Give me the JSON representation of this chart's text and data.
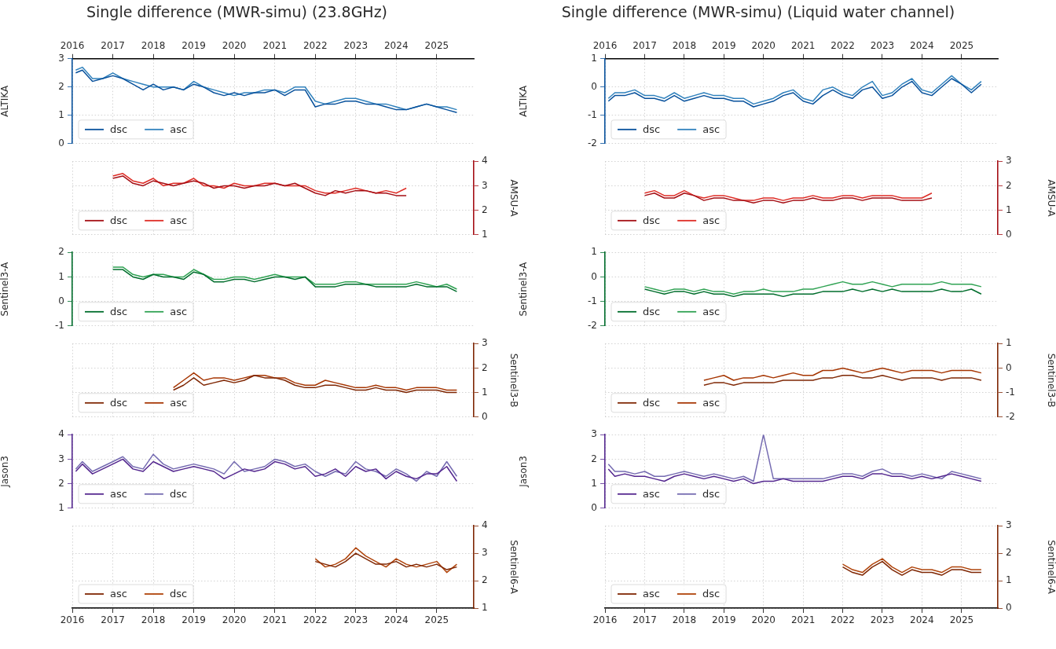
{
  "chart_data": [
    {
      "type": "line",
      "title": "Single difference (MWR-simu) (23.8GHz)",
      "x": [
        "2016-02",
        "2016-04",
        "2016-07",
        "2016-10",
        "2017-01",
        "2017-04",
        "2017-07",
        "2017-10",
        "2018-01",
        "2018-04",
        "2018-07",
        "2018-10",
        "2019-01",
        "2019-04",
        "2019-07",
        "2019-10",
        "2020-01",
        "2020-04",
        "2020-07",
        "2020-10",
        "2021-01",
        "2021-04",
        "2021-07",
        "2021-10",
        "2022-01",
        "2022-04",
        "2022-07",
        "2022-10",
        "2023-01",
        "2023-04",
        "2023-07",
        "2023-10",
        "2024-01",
        "2024-04",
        "2024-07",
        "2024-10",
        "2025-01",
        "2025-04",
        "2025-07"
      ],
      "xlim": [
        "2016-01",
        "2025-12"
      ],
      "xticks": [
        "2016",
        "2017",
        "2018",
        "2019",
        "2020",
        "2021",
        "2022",
        "2023",
        "2024",
        "2025"
      ],
      "ylabel": "ALTIKA",
      "ylim": [
        0,
        3
      ],
      "yticks": [
        0,
        1,
        2,
        3
      ],
      "grid": true,
      "legend": "bottom left",
      "series": [
        {
          "name": "dsc",
          "color": "#08519c",
          "values": [
            2.5,
            2.6,
            2.2,
            2.3,
            2.4,
            2.3,
            2.1,
            1.9,
            2.1,
            1.9,
            2.0,
            1.9,
            2.1,
            2.0,
            1.8,
            1.7,
            1.8,
            1.7,
            1.8,
            1.8,
            1.9,
            1.7,
            1.9,
            1.9,
            1.3,
            1.4,
            1.4,
            1.5,
            1.5,
            1.4,
            1.4,
            1.3,
            1.2,
            1.2,
            1.3,
            1.4,
            1.3,
            1.2,
            1.1
          ]
        },
        {
          "name": "asc",
          "color": "#3182bd",
          "values": [
            2.6,
            2.7,
            2.3,
            2.3,
            2.5,
            2.3,
            2.2,
            2.1,
            2.0,
            2.0,
            2.0,
            1.9,
            2.2,
            2.0,
            1.9,
            1.8,
            1.7,
            1.8,
            1.8,
            1.9,
            1.9,
            1.8,
            2.0,
            2.0,
            1.5,
            1.4,
            1.5,
            1.6,
            1.6,
            1.5,
            1.4,
            1.4,
            1.3,
            1.2,
            1.3,
            1.4,
            1.3,
            1.3,
            1.2
          ]
        }
      ]
    },
    {
      "type": "line",
      "x": [
        "2017-01",
        "2017-04",
        "2017-07",
        "2017-10",
        "2018-01",
        "2018-04",
        "2018-07",
        "2018-10",
        "2019-01",
        "2019-04",
        "2019-07",
        "2019-10",
        "2020-01",
        "2020-04",
        "2020-07",
        "2020-10",
        "2021-01",
        "2021-04",
        "2021-07",
        "2021-10",
        "2022-01",
        "2022-04",
        "2022-07",
        "2022-10",
        "2023-01",
        "2023-04",
        "2023-07",
        "2023-10",
        "2024-01",
        "2024-04"
      ],
      "xlim": [
        "2016-01",
        "2025-12"
      ],
      "xticks": [
        "2016",
        "2017",
        "2018",
        "2019",
        "2020",
        "2021",
        "2022",
        "2023",
        "2024",
        "2025"
      ],
      "tick_labels": "y",
      "y2label": "AMSU-A",
      "y2lim": [
        1,
        4
      ],
      "y2ticks": [
        1,
        2,
        3,
        4
      ],
      "grid": true,
      "legend": "bottom left",
      "series": [
        {
          "name": "dsc",
          "color": "#a50f15",
          "axis": "y2",
          "values": [
            3.3,
            3.4,
            3.1,
            3.0,
            3.2,
            3.1,
            3.0,
            3.1,
            3.2,
            3.1,
            2.9,
            3.0,
            3.0,
            2.9,
            3.0,
            3.0,
            3.1,
            3.0,
            3.1,
            2.9,
            2.7,
            2.6,
            2.8,
            2.7,
            2.8,
            2.8,
            2.7,
            2.7,
            2.6,
            2.6
          ]
        },
        {
          "name": "asc",
          "color": "#de2d26",
          "axis": "y2",
          "values": [
            3.4,
            3.5,
            3.2,
            3.1,
            3.3,
            3.0,
            3.1,
            3.1,
            3.3,
            3.0,
            3.0,
            2.9,
            3.1,
            3.0,
            3.0,
            3.1,
            3.1,
            3.0,
            3.0,
            3.0,
            2.8,
            2.7,
            2.7,
            2.8,
            2.9,
            2.8,
            2.7,
            2.8,
            2.7,
            2.9
          ]
        }
      ]
    },
    {
      "type": "line",
      "x": [
        "2017-01",
        "2017-04",
        "2017-07",
        "2017-10",
        "2018-01",
        "2018-04",
        "2018-07",
        "2018-10",
        "2019-01",
        "2019-04",
        "2019-07",
        "2019-10",
        "2020-01",
        "2020-04",
        "2020-07",
        "2020-10",
        "2021-01",
        "2021-04",
        "2021-07",
        "2021-10",
        "2022-01",
        "2022-04",
        "2022-07",
        "2022-10",
        "2023-01",
        "2023-04",
        "2023-07",
        "2023-10",
        "2024-01",
        "2024-04",
        "2024-07",
        "2024-10",
        "2025-01",
        "2025-04",
        "2025-07"
      ],
      "xlim": [
        "2016-01",
        "2025-12"
      ],
      "xticks": [
        "2016",
        "2017",
        "2018",
        "2019",
        "2020",
        "2021",
        "2022",
        "2023",
        "2024",
        "2025"
      ],
      "tick_labels": "y",
      "ylabel": "Sentinel3-A",
      "ylim": [
        -1,
        2
      ],
      "yticks": [
        -1,
        0,
        1,
        2
      ],
      "grid": true,
      "legend": "bottom left",
      "series": [
        {
          "name": "dsc",
          "color": "#006d2c",
          "values": [
            1.3,
            1.3,
            1.0,
            0.9,
            1.1,
            1.0,
            1.0,
            0.9,
            1.2,
            1.1,
            0.8,
            0.8,
            0.9,
            0.9,
            0.8,
            0.9,
            1.0,
            1.0,
            0.9,
            1.0,
            0.6,
            0.6,
            0.6,
            0.7,
            0.7,
            0.7,
            0.6,
            0.6,
            0.6,
            0.6,
            0.7,
            0.6,
            0.6,
            0.6,
            0.4
          ]
        },
        {
          "name": "asc",
          "color": "#31a354",
          "values": [
            1.4,
            1.4,
            1.1,
            1.0,
            1.1,
            1.1,
            1.0,
            1.0,
            1.3,
            1.1,
            0.9,
            0.9,
            1.0,
            1.0,
            0.9,
            1.0,
            1.1,
            1.0,
            1.0,
            1.0,
            0.7,
            0.7,
            0.7,
            0.8,
            0.8,
            0.7,
            0.7,
            0.7,
            0.7,
            0.7,
            0.8,
            0.7,
            0.6,
            0.7,
            0.5
          ]
        }
      ]
    },
    {
      "type": "line",
      "x": [
        "2018-07",
        "2018-10",
        "2019-01",
        "2019-04",
        "2019-07",
        "2019-10",
        "2020-01",
        "2020-04",
        "2020-07",
        "2020-10",
        "2021-01",
        "2021-04",
        "2021-07",
        "2021-10",
        "2022-01",
        "2022-04",
        "2022-07",
        "2022-10",
        "2023-01",
        "2023-04",
        "2023-07",
        "2023-10",
        "2024-01",
        "2024-04",
        "2024-07",
        "2024-10",
        "2025-01",
        "2025-04",
        "2025-07"
      ],
      "xlim": [
        "2016-01",
        "2025-12"
      ],
      "xticks": [
        "2016",
        "2017",
        "2018",
        "2019",
        "2020",
        "2021",
        "2022",
        "2023",
        "2024",
        "2025"
      ],
      "tick_labels": "y",
      "y2label": "Sentinel3-B",
      "y2lim": [
        0,
        3
      ],
      "y2ticks": [
        0,
        1,
        2,
        3
      ],
      "grid": true,
      "legend": "bottom left",
      "series": [
        {
          "name": "dsc",
          "color": "#7f2704",
          "axis": "y2",
          "values": [
            1.1,
            1.3,
            1.6,
            1.3,
            1.4,
            1.5,
            1.4,
            1.5,
            1.7,
            1.6,
            1.6,
            1.5,
            1.3,
            1.2,
            1.2,
            1.3,
            1.3,
            1.2,
            1.1,
            1.1,
            1.2,
            1.1,
            1.1,
            1.0,
            1.1,
            1.1,
            1.1,
            1.0,
            1.0
          ]
        },
        {
          "name": "asc",
          "color": "#a63603",
          "axis": "y2",
          "values": [
            1.2,
            1.5,
            1.8,
            1.5,
            1.6,
            1.6,
            1.5,
            1.6,
            1.7,
            1.7,
            1.6,
            1.6,
            1.4,
            1.3,
            1.3,
            1.5,
            1.4,
            1.3,
            1.2,
            1.2,
            1.3,
            1.2,
            1.2,
            1.1,
            1.2,
            1.2,
            1.2,
            1.1,
            1.1
          ]
        }
      ]
    },
    {
      "type": "line",
      "x": [
        "2016-02",
        "2016-04",
        "2016-07",
        "2016-10",
        "2017-01",
        "2017-04",
        "2017-07",
        "2017-10",
        "2018-01",
        "2018-04",
        "2018-07",
        "2018-10",
        "2019-01",
        "2019-04",
        "2019-07",
        "2019-10",
        "2020-01",
        "2020-04",
        "2020-07",
        "2020-10",
        "2021-01",
        "2021-04",
        "2021-07",
        "2021-10",
        "2022-01",
        "2022-04",
        "2022-07",
        "2022-10",
        "2023-01",
        "2023-04",
        "2023-07",
        "2023-10",
        "2024-01",
        "2024-04",
        "2024-07",
        "2024-10",
        "2025-01",
        "2025-04",
        "2025-07"
      ],
      "xlim": [
        "2016-01",
        "2025-12"
      ],
      "xticks": [
        "2016",
        "2017",
        "2018",
        "2019",
        "2020",
        "2021",
        "2022",
        "2023",
        "2024",
        "2025"
      ],
      "tick_labels": "y",
      "ylabel": "Jason3",
      "ylim": [
        1,
        4
      ],
      "yticks": [
        1,
        2,
        3,
        4
      ],
      "grid": true,
      "legend": "bottom left",
      "series": [
        {
          "name": "asc",
          "color": "#54278f",
          "values": [
            2.5,
            2.8,
            2.4,
            2.6,
            2.8,
            3.0,
            2.6,
            2.5,
            2.9,
            2.7,
            2.5,
            2.6,
            2.7,
            2.6,
            2.5,
            2.2,
            2.4,
            2.6,
            2.5,
            2.6,
            2.9,
            2.8,
            2.6,
            2.7,
            2.3,
            2.4,
            2.6,
            2.3,
            2.7,
            2.5,
            2.6,
            2.2,
            2.5,
            2.3,
            2.2,
            2.4,
            2.4,
            2.7,
            2.1
          ]
        },
        {
          "name": "dsc",
          "color": "#756bb1",
          "values": [
            2.6,
            2.9,
            2.5,
            2.7,
            2.9,
            3.1,
            2.7,
            2.6,
            3.2,
            2.8,
            2.6,
            2.7,
            2.8,
            2.7,
            2.6,
            2.4,
            2.9,
            2.5,
            2.6,
            2.7,
            3.0,
            2.9,
            2.7,
            2.8,
            2.5,
            2.3,
            2.5,
            2.4,
            2.9,
            2.6,
            2.5,
            2.3,
            2.6,
            2.4,
            2.1,
            2.5,
            2.3,
            2.9,
            2.3
          ]
        }
      ]
    },
    {
      "type": "line",
      "x": [
        "2022-01",
        "2022-04",
        "2022-07",
        "2022-10",
        "2023-01",
        "2023-04",
        "2023-07",
        "2023-10",
        "2024-01",
        "2024-04",
        "2024-07",
        "2024-10",
        "2025-01",
        "2025-04",
        "2025-07"
      ],
      "xlim": [
        "2016-01",
        "2025-12"
      ],
      "xticks": [
        "2016",
        "2017",
        "2018",
        "2019",
        "2020",
        "2021",
        "2022",
        "2023",
        "2024",
        "2025"
      ],
      "y2label": "Sentinel6-A",
      "y2lim": [
        1,
        4
      ],
      "y2ticks": [
        1,
        2,
        3,
        4
      ],
      "grid": true,
      "legend": "bottom left",
      "series": [
        {
          "name": "asc",
          "color": "#7f2704",
          "axis": "y2",
          "values": [
            2.7,
            2.6,
            2.5,
            2.7,
            3.0,
            2.8,
            2.6,
            2.6,
            2.7,
            2.5,
            2.6,
            2.5,
            2.6,
            2.4,
            2.5
          ]
        },
        {
          "name": "dsc",
          "color": "#b0450c",
          "axis": "y2",
          "values": [
            2.8,
            2.5,
            2.6,
            2.8,
            3.2,
            2.9,
            2.7,
            2.5,
            2.8,
            2.6,
            2.5,
            2.6,
            2.7,
            2.3,
            2.6
          ]
        }
      ]
    },
    {
      "type": "line",
      "title": "Single difference (MWR-simu) (Liquid water channel)",
      "x": [
        "2016-02",
        "2016-04",
        "2016-07",
        "2016-10",
        "2017-01",
        "2017-04",
        "2017-07",
        "2017-10",
        "2018-01",
        "2018-04",
        "2018-07",
        "2018-10",
        "2019-01",
        "2019-04",
        "2019-07",
        "2019-10",
        "2020-01",
        "2020-04",
        "2020-07",
        "2020-10",
        "2021-01",
        "2021-04",
        "2021-07",
        "2021-10",
        "2022-01",
        "2022-04",
        "2022-07",
        "2022-10",
        "2023-01",
        "2023-04",
        "2023-07",
        "2023-10",
        "2024-01",
        "2024-04",
        "2024-07",
        "2024-10",
        "2025-01",
        "2025-04",
        "2025-07"
      ],
      "xlim": [
        "2016-01",
        "2025-12"
      ],
      "xticks": [
        "2016",
        "2017",
        "2018",
        "2019",
        "2020",
        "2021",
        "2022",
        "2023",
        "2024",
        "2025"
      ],
      "ylabel": "ALTIKA",
      "ylim": [
        -2,
        1
      ],
      "yticks": [
        -2,
        -1,
        0,
        1
      ],
      "grid": true,
      "legend": "bottom left",
      "series": [
        {
          "name": "dsc",
          "color": "#08519c",
          "values": [
            -0.5,
            -0.3,
            -0.3,
            -0.2,
            -0.4,
            -0.4,
            -0.5,
            -0.3,
            -0.5,
            -0.4,
            -0.3,
            -0.4,
            -0.4,
            -0.5,
            -0.5,
            -0.7,
            -0.6,
            -0.5,
            -0.3,
            -0.2,
            -0.5,
            -0.6,
            -0.3,
            -0.1,
            -0.3,
            -0.4,
            -0.1,
            0.0,
            -0.4,
            -0.3,
            0.0,
            0.2,
            -0.2,
            -0.3,
            0.0,
            0.3,
            0.1,
            -0.2,
            0.1
          ]
        },
        {
          "name": "asc",
          "color": "#3182bd",
          "values": [
            -0.4,
            -0.2,
            -0.2,
            -0.1,
            -0.3,
            -0.3,
            -0.4,
            -0.2,
            -0.4,
            -0.3,
            -0.2,
            -0.3,
            -0.3,
            -0.4,
            -0.4,
            -0.6,
            -0.5,
            -0.4,
            -0.2,
            -0.1,
            -0.4,
            -0.5,
            -0.1,
            0.0,
            -0.2,
            -0.3,
            0.0,
            0.2,
            -0.3,
            -0.2,
            0.1,
            0.3,
            -0.1,
            -0.2,
            0.1,
            0.4,
            0.1,
            -0.1,
            0.2
          ]
        }
      ]
    },
    {
      "type": "line",
      "x": [
        "2017-01",
        "2017-04",
        "2017-07",
        "2017-10",
        "2018-01",
        "2018-04",
        "2018-07",
        "2018-10",
        "2019-01",
        "2019-04",
        "2019-07",
        "2019-10",
        "2020-01",
        "2020-04",
        "2020-07",
        "2020-10",
        "2021-01",
        "2021-04",
        "2021-07",
        "2021-10",
        "2022-01",
        "2022-04",
        "2022-07",
        "2022-10",
        "2023-01",
        "2023-04",
        "2023-07",
        "2023-10",
        "2024-01",
        "2024-04"
      ],
      "xlim": [
        "2016-01",
        "2025-12"
      ],
      "xticks": [
        "2016",
        "2017",
        "2018",
        "2019",
        "2020",
        "2021",
        "2022",
        "2023",
        "2024",
        "2025"
      ],
      "tick_labels": "y",
      "y2label": "AMSU-A",
      "y2lim": [
        0,
        3
      ],
      "y2ticks": [
        0,
        1,
        2,
        3
      ],
      "grid": true,
      "legend": "bottom left",
      "series": [
        {
          "name": "dsc",
          "color": "#a50f15",
          "axis": "y2",
          "values": [
            1.6,
            1.7,
            1.5,
            1.5,
            1.7,
            1.6,
            1.4,
            1.5,
            1.5,
            1.4,
            1.4,
            1.3,
            1.4,
            1.4,
            1.3,
            1.4,
            1.4,
            1.5,
            1.4,
            1.4,
            1.5,
            1.5,
            1.4,
            1.5,
            1.5,
            1.5,
            1.4,
            1.4,
            1.4,
            1.5
          ]
        },
        {
          "name": "asc",
          "color": "#de2d26",
          "axis": "y2",
          "values": [
            1.7,
            1.8,
            1.6,
            1.6,
            1.8,
            1.6,
            1.5,
            1.6,
            1.6,
            1.5,
            1.4,
            1.4,
            1.5,
            1.5,
            1.4,
            1.5,
            1.5,
            1.6,
            1.5,
            1.5,
            1.6,
            1.6,
            1.5,
            1.6,
            1.6,
            1.6,
            1.5,
            1.5,
            1.5,
            1.7
          ]
        }
      ]
    },
    {
      "type": "line",
      "x": [
        "2017-01",
        "2017-04",
        "2017-07",
        "2017-10",
        "2018-01",
        "2018-04",
        "2018-07",
        "2018-10",
        "2019-01",
        "2019-04",
        "2019-07",
        "2019-10",
        "2020-01",
        "2020-04",
        "2020-07",
        "2020-10",
        "2021-01",
        "2021-04",
        "2021-07",
        "2021-10",
        "2022-01",
        "2022-04",
        "2022-07",
        "2022-10",
        "2023-01",
        "2023-04",
        "2023-07",
        "2023-10",
        "2024-01",
        "2024-04",
        "2024-07",
        "2024-10",
        "2025-01",
        "2025-04",
        "2025-07"
      ],
      "xlim": [
        "2016-01",
        "2025-12"
      ],
      "xticks": [
        "2016",
        "2017",
        "2018",
        "2019",
        "2020",
        "2021",
        "2022",
        "2023",
        "2024",
        "2025"
      ],
      "tick_labels": "y",
      "ylabel": "Sentinel3-A",
      "ylim": [
        -2,
        1
      ],
      "yticks": [
        -2,
        -1,
        0,
        1
      ],
      "grid": true,
      "legend": "bottom left",
      "series": [
        {
          "name": "dsc",
          "color": "#006d2c",
          "values": [
            -0.5,
            -0.6,
            -0.7,
            -0.6,
            -0.6,
            -0.7,
            -0.6,
            -0.7,
            -0.7,
            -0.8,
            -0.7,
            -0.7,
            -0.7,
            -0.7,
            -0.8,
            -0.7,
            -0.7,
            -0.7,
            -0.6,
            -0.6,
            -0.6,
            -0.5,
            -0.6,
            -0.5,
            -0.6,
            -0.5,
            -0.6,
            -0.6,
            -0.6,
            -0.6,
            -0.5,
            -0.6,
            -0.6,
            -0.5,
            -0.7
          ]
        },
        {
          "name": "asc",
          "color": "#31a354",
          "values": [
            -0.4,
            -0.5,
            -0.6,
            -0.5,
            -0.5,
            -0.6,
            -0.5,
            -0.6,
            -0.6,
            -0.7,
            -0.6,
            -0.6,
            -0.5,
            -0.6,
            -0.6,
            -0.6,
            -0.5,
            -0.5,
            -0.4,
            -0.3,
            -0.2,
            -0.3,
            -0.3,
            -0.2,
            -0.3,
            -0.4,
            -0.3,
            -0.3,
            -0.3,
            -0.3,
            -0.2,
            -0.3,
            -0.3,
            -0.3,
            -0.4
          ]
        }
      ]
    },
    {
      "type": "line",
      "x": [
        "2018-07",
        "2018-10",
        "2019-01",
        "2019-04",
        "2019-07",
        "2019-10",
        "2020-01",
        "2020-04",
        "2020-07",
        "2020-10",
        "2021-01",
        "2021-04",
        "2021-07",
        "2021-10",
        "2022-01",
        "2022-04",
        "2022-07",
        "2022-10",
        "2023-01",
        "2023-04",
        "2023-07",
        "2023-10",
        "2024-01",
        "2024-04",
        "2024-07",
        "2024-10",
        "2025-01",
        "2025-04",
        "2025-07"
      ],
      "xlim": [
        "2016-01",
        "2025-12"
      ],
      "xticks": [
        "2016",
        "2017",
        "2018",
        "2019",
        "2020",
        "2021",
        "2022",
        "2023",
        "2024",
        "2025"
      ],
      "tick_labels": "y",
      "y2label": "Sentinel3-B",
      "y2lim": [
        -2,
        1
      ],
      "y2ticks": [
        -2,
        -1,
        0,
        1
      ],
      "grid": true,
      "legend": "bottom left",
      "series": [
        {
          "name": "dsc",
          "color": "#7f2704",
          "axis": "y2",
          "values": [
            -0.7,
            -0.6,
            -0.6,
            -0.7,
            -0.6,
            -0.6,
            -0.6,
            -0.6,
            -0.5,
            -0.5,
            -0.5,
            -0.5,
            -0.4,
            -0.4,
            -0.3,
            -0.3,
            -0.4,
            -0.4,
            -0.3,
            -0.4,
            -0.5,
            -0.4,
            -0.4,
            -0.4,
            -0.5,
            -0.4,
            -0.4,
            -0.4,
            -0.5
          ]
        },
        {
          "name": "asc",
          "color": "#a63603",
          "axis": "y2",
          "values": [
            -0.5,
            -0.4,
            -0.3,
            -0.5,
            -0.4,
            -0.4,
            -0.3,
            -0.4,
            -0.3,
            -0.2,
            -0.3,
            -0.3,
            -0.1,
            -0.1,
            0.0,
            -0.1,
            -0.2,
            -0.1,
            0.0,
            -0.1,
            -0.2,
            -0.1,
            -0.1,
            -0.1,
            -0.2,
            -0.1,
            -0.1,
            -0.1,
            -0.2
          ]
        }
      ]
    },
    {
      "type": "line",
      "x": [
        "2016-02",
        "2016-04",
        "2016-07",
        "2016-10",
        "2017-01",
        "2017-04",
        "2017-07",
        "2017-10",
        "2018-01",
        "2018-04",
        "2018-07",
        "2018-10",
        "2019-01",
        "2019-04",
        "2019-07",
        "2019-10",
        "2020-01",
        "2020-04",
        "2020-07",
        "2020-10",
        "2021-01",
        "2021-04",
        "2021-07",
        "2021-10",
        "2022-01",
        "2022-04",
        "2022-07",
        "2022-10",
        "2023-01",
        "2023-04",
        "2023-07",
        "2023-10",
        "2024-01",
        "2024-04",
        "2024-07",
        "2024-10",
        "2025-01",
        "2025-04",
        "2025-07"
      ],
      "xlim": [
        "2016-01",
        "2025-12"
      ],
      "xticks": [
        "2016",
        "2017",
        "2018",
        "2019",
        "2020",
        "2021",
        "2022",
        "2023",
        "2024",
        "2025"
      ],
      "tick_labels": "y",
      "ylabel": "Jason3",
      "ylim": [
        0,
        3
      ],
      "yticks": [
        0,
        1,
        2,
        3
      ],
      "grid": true,
      "legend": "bottom left",
      "series": [
        {
          "name": "asc",
          "color": "#54278f",
          "values": [
            1.6,
            1.3,
            1.4,
            1.3,
            1.3,
            1.2,
            1.1,
            1.3,
            1.4,
            1.3,
            1.2,
            1.3,
            1.2,
            1.1,
            1.2,
            1.0,
            1.1,
            1.1,
            1.2,
            1.1,
            1.1,
            1.1,
            1.1,
            1.2,
            1.3,
            1.3,
            1.2,
            1.4,
            1.4,
            1.3,
            1.3,
            1.2,
            1.3,
            1.2,
            1.3,
            1.4,
            1.3,
            1.2,
            1.1
          ]
        },
        {
          "name": "dsc",
          "color": "#756bb1",
          "values": [
            1.8,
            1.5,
            1.5,
            1.4,
            1.5,
            1.3,
            1.3,
            1.4,
            1.5,
            1.4,
            1.3,
            1.4,
            1.3,
            1.2,
            1.3,
            1.1,
            3.0,
            1.2,
            1.2,
            1.2,
            1.2,
            1.2,
            1.2,
            1.3,
            1.4,
            1.4,
            1.3,
            1.5,
            1.6,
            1.4,
            1.4,
            1.3,
            1.4,
            1.3,
            1.2,
            1.5,
            1.4,
            1.3,
            1.2
          ]
        }
      ]
    },
    {
      "type": "line",
      "x": [
        "2022-01",
        "2022-04",
        "2022-07",
        "2022-10",
        "2023-01",
        "2023-04",
        "2023-07",
        "2023-10",
        "2024-01",
        "2024-04",
        "2024-07",
        "2024-10",
        "2025-01",
        "2025-04",
        "2025-07"
      ],
      "xlim": [
        "2016-01",
        "2025-12"
      ],
      "xticks": [
        "2016",
        "2017",
        "2018",
        "2019",
        "2020",
        "2021",
        "2022",
        "2023",
        "2024",
        "2025"
      ],
      "y2label": "Sentinel6-A",
      "y2lim": [
        0,
        3
      ],
      "y2ticks": [
        0,
        1,
        2,
        3
      ],
      "grid": true,
      "legend": "bottom left",
      "series": [
        {
          "name": "asc",
          "color": "#7f2704",
          "axis": "y2",
          "values": [
            1.5,
            1.3,
            1.2,
            1.5,
            1.7,
            1.4,
            1.2,
            1.4,
            1.3,
            1.3,
            1.2,
            1.4,
            1.4,
            1.3,
            1.3
          ]
        },
        {
          "name": "dsc",
          "color": "#b0450c",
          "axis": "y2",
          "values": [
            1.6,
            1.4,
            1.3,
            1.6,
            1.8,
            1.5,
            1.3,
            1.5,
            1.4,
            1.4,
            1.3,
            1.5,
            1.5,
            1.4,
            1.4
          ]
        }
      ]
    }
  ]
}
